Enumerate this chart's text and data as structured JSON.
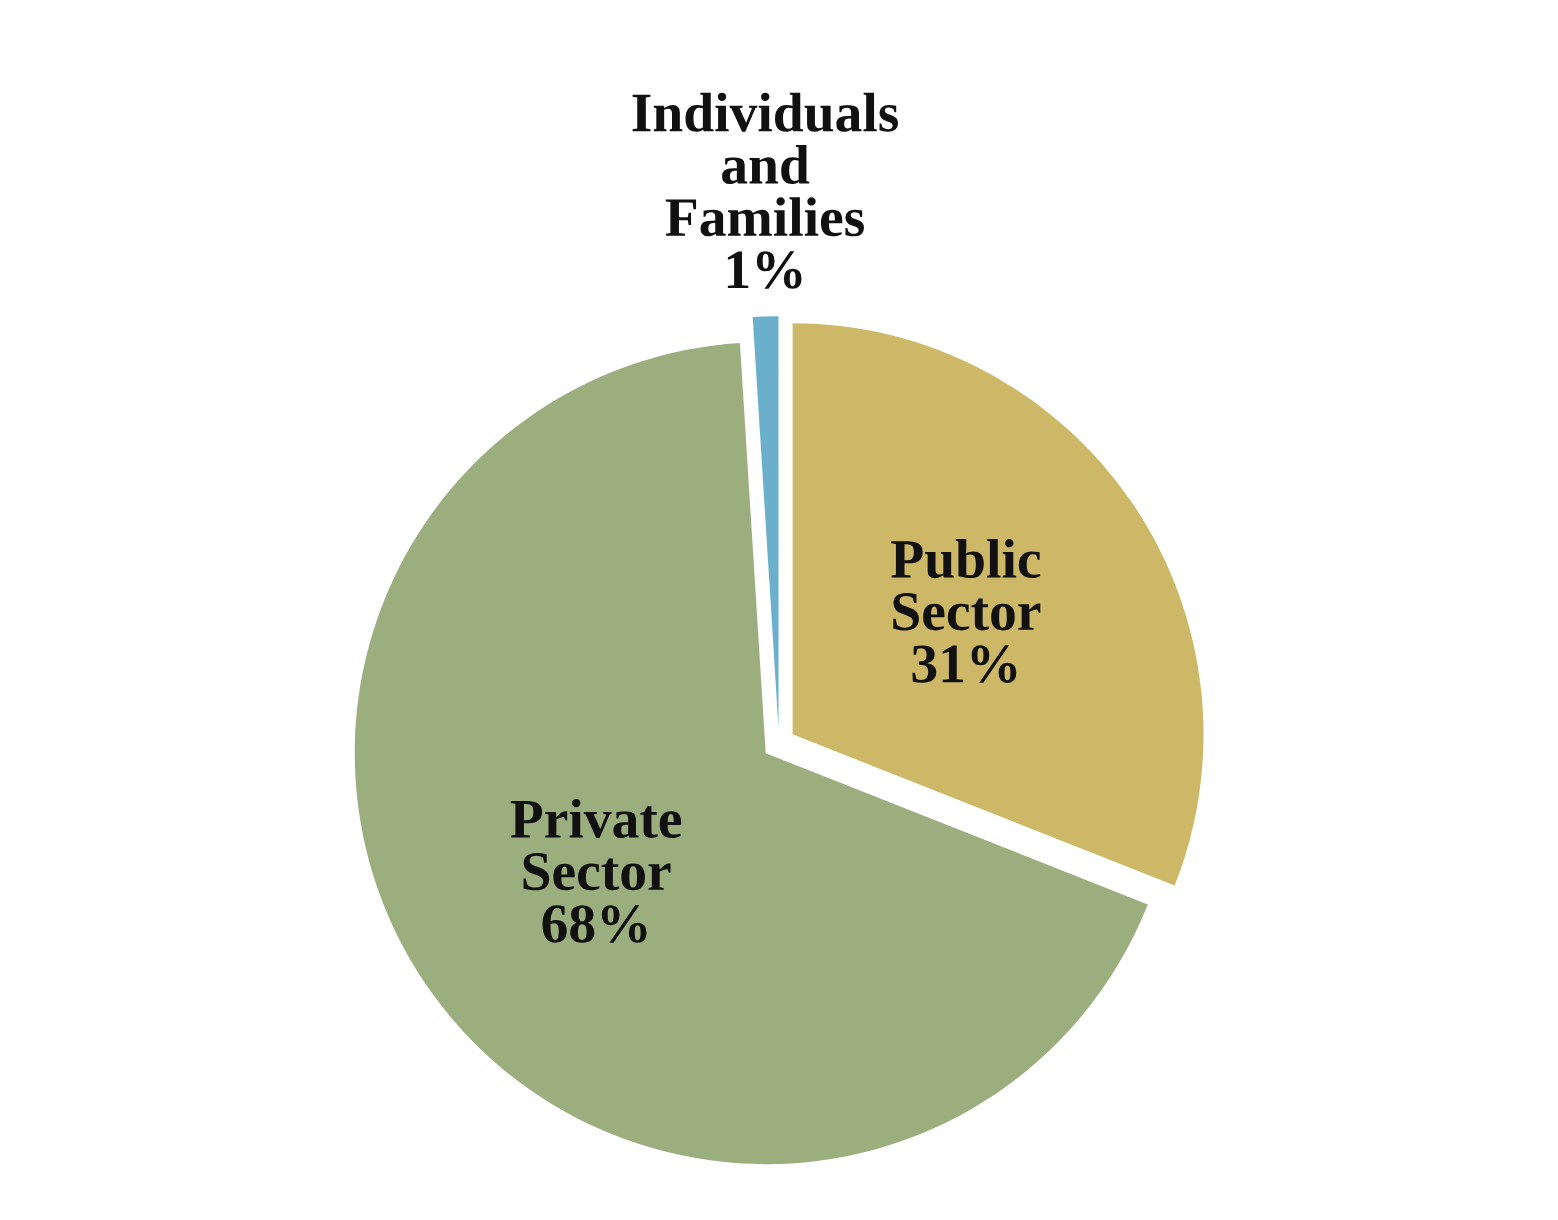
{
  "chart_data": {
    "type": "pie",
    "categories": [
      "Public Sector",
      "Private Sector",
      "Individuals and Families"
    ],
    "values": [
      31,
      68,
      1
    ],
    "value_labels": [
      "31%",
      "68%",
      "1%"
    ],
    "colors": [
      "#cdb868",
      "#9aae7e",
      "#6ab0cc"
    ]
  }
}
